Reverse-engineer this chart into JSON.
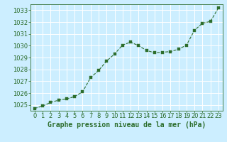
{
  "x": [
    0,
    1,
    2,
    3,
    4,
    5,
    6,
    7,
    8,
    9,
    10,
    11,
    12,
    13,
    14,
    15,
    16,
    17,
    18,
    19,
    20,
    21,
    22,
    23
  ],
  "y": [
    1024.7,
    1024.9,
    1025.2,
    1025.4,
    1025.5,
    1025.7,
    1026.1,
    1027.3,
    1027.9,
    1028.7,
    1029.3,
    1030.05,
    1030.3,
    1030.0,
    1029.6,
    1029.4,
    1029.45,
    1029.5,
    1029.7,
    1030.05,
    1031.3,
    1031.9,
    1032.05,
    1033.2
  ],
  "title": "Graphe pression niveau de la mer (hPa)",
  "bg_color": "#cceeff",
  "grid_color": "#ffffff",
  "line_color": "#2d6e2d",
  "marker_color": "#2d6e2d",
  "tick_label_color": "#2d6e2d",
  "title_color": "#2d6e2d",
  "ylim_min": 1024.5,
  "ylim_max": 1033.5,
  "yticks": [
    1025,
    1026,
    1027,
    1028,
    1029,
    1030,
    1031,
    1032,
    1033
  ],
  "xticks": [
    0,
    1,
    2,
    3,
    4,
    5,
    6,
    7,
    8,
    9,
    10,
    11,
    12,
    13,
    14,
    15,
    16,
    17,
    18,
    19,
    20,
    21,
    22,
    23
  ],
  "font_size": 6.0,
  "title_font_size": 7.0
}
